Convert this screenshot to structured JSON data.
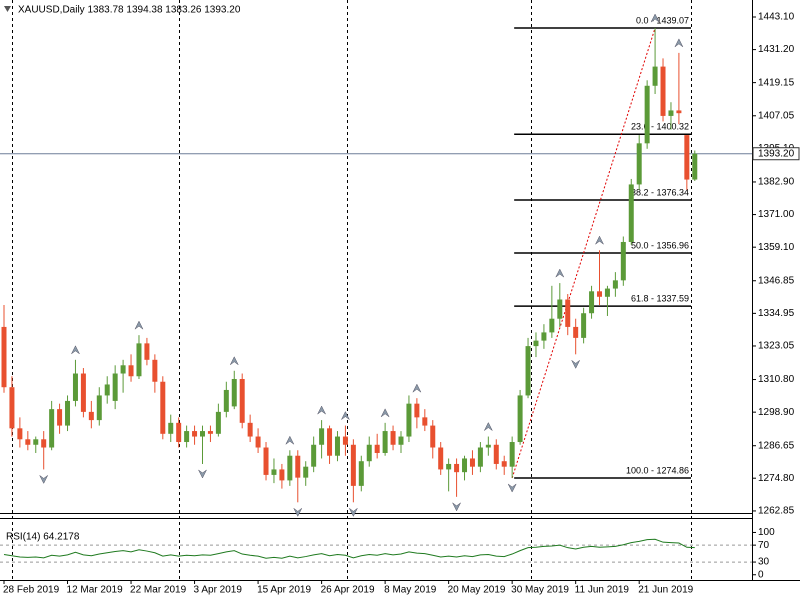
{
  "legend": "XAUUSD,Daily 1383.78 1394.38 1383.26 1393.20",
  "chart_data": [
    {
      "type": "candlestick",
      "categories": [
        "28 Feb 2019",
        null,
        null,
        null,
        null,
        null,
        null,
        null,
        "12 Mar 2019",
        null,
        null,
        null,
        null,
        null,
        null,
        null,
        "22 Mar 2019",
        null,
        null,
        null,
        null,
        null,
        null,
        null,
        "3 Apr 2019",
        null,
        null,
        null,
        null,
        null,
        null,
        null,
        "15 Apr 2019",
        null,
        null,
        null,
        null,
        null,
        null,
        null,
        "26 Apr 2019",
        null,
        null,
        null,
        null,
        null,
        null,
        null,
        "8 May 2019",
        null,
        null,
        null,
        null,
        null,
        null,
        null,
        "20 May 2019",
        null,
        null,
        null,
        null,
        null,
        null,
        null,
        "30 May 2019",
        null,
        null,
        null,
        null,
        null,
        null,
        null,
        "11 Jun 2019",
        null,
        null,
        null,
        null,
        null,
        null,
        null,
        "21 Jun 2019",
        null,
        null,
        null,
        null,
        null,
        null,
        null
      ],
      "open": [
        1330,
        1308,
        1293,
        1289,
        1287,
        1289,
        1286,
        1300,
        1294,
        1303,
        1313,
        1299,
        1296,
        1305,
        1303,
        1313,
        1316,
        1312,
        1324,
        1318,
        1310,
        1291,
        1295,
        1288,
        1292,
        1290,
        1292,
        1291,
        1299,
        1301,
        1311,
        1295,
        1290,
        1286,
        1276,
        1278,
        1274,
        1283,
        1275,
        1279,
        1287,
        1293,
        1283,
        1290,
        1287,
        1272,
        1281,
        1287,
        1284,
        1292,
        1287,
        1290,
        1302,
        1297,
        1294,
        1286,
        1278,
        1280,
        1277,
        1282,
        1279,
        1286,
        1287,
        1281,
        1279,
        1288,
        1305,
        1323,
        1325,
        1328,
        1333,
        1340,
        1330,
        1326,
        1335,
        1343,
        1341,
        1344,
        1347,
        1361,
        1382,
        1397,
        1418,
        1425,
        1407,
        1409,
        1400,
        1383.78
      ],
      "high": [
        1338,
        1312,
        1297,
        1292,
        1290,
        1292,
        1303,
        1302,
        1305,
        1318,
        1315,
        1303,
        1308,
        1312,
        1316,
        1318,
        1320,
        1327,
        1326,
        1320,
        1312,
        1298,
        1297,
        1294,
        1294,
        1294,
        1294,
        1302,
        1310,
        1314,
        1313,
        1298,
        1293,
        1288,
        1282,
        1280,
        1285,
        1285,
        1281,
        1290,
        1296,
        1294,
        1292,
        1294,
        1289,
        1283,
        1290,
        1291,
        1295,
        1294,
        1292,
        1305,
        1304,
        1300,
        1296,
        1288,
        1282,
        1282,
        1283,
        1285,
        1288,
        1290,
        1289,
        1283,
        1290,
        1307,
        1326,
        1328,
        1331,
        1345,
        1346,
        1342,
        1333,
        1337,
        1345,
        1358,
        1345,
        1350,
        1363,
        1384,
        1400,
        1420,
        1439.07,
        1428,
        1412,
        1430,
        1400,
        1394.38
      ],
      "low": [
        1306,
        1290,
        1286,
        1285,
        1284,
        1278,
        1285,
        1291,
        1292,
        1301,
        1297,
        1293,
        1294,
        1302,
        1300,
        1306,
        1310,
        1311,
        1316,
        1306,
        1289,
        1288,
        1286,
        1286,
        1287,
        1280,
        1288,
        1290,
        1297,
        1300,
        1293,
        1288,
        1284,
        1274,
        1273,
        1271,
        1272,
        1266,
        1272,
        1277,
        1282,
        1280,
        1281,
        1283,
        1266,
        1270,
        1279,
        1282,
        1283,
        1285,
        1284,
        1288,
        1293,
        1292,
        1282,
        1276,
        1270,
        1268,
        1274,
        1276,
        1277,
        1283,
        1278,
        1276,
        1274.86,
        1287,
        1304,
        1319,
        1322,
        1326,
        1330,
        1327,
        1320,
        1324,
        1333,
        1338,
        1334,
        1341,
        1345,
        1360,
        1380,
        1395,
        1415,
        1405,
        1402,
        1404,
        1380,
        1383.26
      ],
      "close": [
        1308,
        1293,
        1289,
        1287,
        1289,
        1286,
        1300,
        1294,
        1303,
        1313,
        1299,
        1296,
        1305,
        1309,
        1313,
        1316,
        1312,
        1324,
        1318,
        1310,
        1291,
        1295,
        1288,
        1292,
        1290,
        1292,
        1291,
        1299,
        1307,
        1311,
        1295,
        1290,
        1286,
        1276,
        1278,
        1274,
        1283,
        1275,
        1279,
        1287,
        1293,
        1283,
        1290,
        1287,
        1272,
        1281,
        1287,
        1284,
        1292,
        1287,
        1290,
        1302,
        1297,
        1294,
        1286,
        1278,
        1280,
        1277,
        1282,
        1279,
        1286,
        1287,
        1280,
        1279,
        1288,
        1305,
        1323,
        1325,
        1328,
        1333,
        1340,
        1330,
        1326,
        1335,
        1343,
        1341,
        1344,
        1347,
        1361,
        1382,
        1397,
        1418,
        1425,
        1407,
        1409,
        1408,
        1383.78,
        1393.2
      ],
      "up_color": "#5b9a38",
      "down_color": "#e8502f",
      "ylim": [
        1262.1,
        1449.3
      ],
      "yticks": [
        {
          "value": 1443.1,
          "label": "1443.10"
        },
        {
          "value": 1431.2,
          "label": "1431.20"
        },
        1419.15,
        1407.05,
        {
          "value": 1395.1,
          "label": "1395.10"
        },
        {
          "value": 1382.9,
          "label": "1382.90"
        },
        {
          "value": 1371,
          "label": "1371.00"
        },
        {
          "value": 1359.1,
          "label": "1359.10"
        },
        1346.85,
        1334.95,
        1323.05,
        {
          "value": 1310.8,
          "label": "1310.80"
        },
        {
          "value": 1298.9,
          "label": "1298.90"
        },
        1286.65,
        {
          "value": 1274.8,
          "label": "1274.80"
        },
        1262.85
      ],
      "current_price": {
        "value": 1393.2,
        "label": "1393.20"
      },
      "fibonacci": {
        "levels": [
          {
            "value": 1439.07,
            "label": "0.0 - 1439.07"
          },
          {
            "value": 1400.32,
            "label": "23.6 - 1400.32"
          },
          {
            "value": 1376.34,
            "label": "38.2 - 1376.34"
          },
          {
            "value": 1356.96,
            "label": "50.0 - 1356.96"
          },
          {
            "value": 1337.59,
            "label": "61.8 - 1337.59"
          },
          {
            "value": 1274.86,
            "label": "100.0 - 1274.86"
          }
        ],
        "anchors": [
          64,
          82
        ],
        "color": "#e00000"
      },
      "fractals_up": [
        9,
        17,
        29,
        36,
        40,
        43,
        48,
        52,
        61,
        70,
        75,
        82,
        85
      ],
      "fractals_down": [
        5,
        25,
        37,
        44,
        57,
        64,
        72
      ]
    },
    {
      "type": "line",
      "title": "RSI(14) 64.2178",
      "values": [
        48,
        45,
        42,
        41,
        42,
        40,
        46,
        44,
        47,
        53,
        47,
        45,
        49,
        52,
        55,
        57,
        54,
        59,
        56,
        52,
        44,
        47,
        44,
        46,
        45,
        47,
        46,
        50,
        54,
        57,
        49,
        46,
        44,
        39,
        41,
        39,
        44,
        40,
        43,
        47,
        50,
        45,
        48,
        46,
        40,
        45,
        48,
        46,
        50,
        47,
        49,
        54,
        51,
        50,
        46,
        42,
        44,
        42,
        45,
        43,
        47,
        48,
        44,
        43,
        49,
        57,
        64,
        65,
        67,
        68,
        70,
        64,
        61,
        65,
        67,
        65,
        66,
        67,
        71,
        76,
        79,
        83,
        84,
        77,
        76,
        75,
        65,
        64.2178
      ],
      "color": "#1f7a1f",
      "ylim": [
        -12.4,
        131.8
      ],
      "yticks": [
        100,
        70,
        30,
        0
      ],
      "level_ticks": [
        1,
        2
      ]
    }
  ]
}
